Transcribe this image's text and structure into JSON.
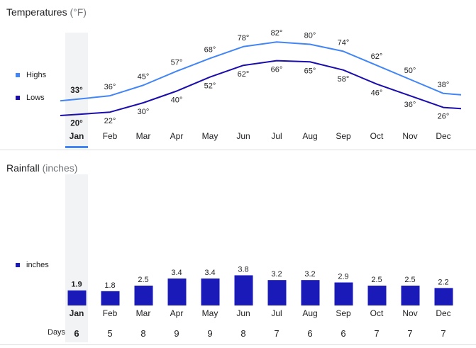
{
  "temperatures": {
    "title": "Temperatures",
    "unit": "(°F)",
    "legend": {
      "highs": "Highs",
      "lows": "Lows"
    }
  },
  "rainfall": {
    "title": "Rainfall",
    "unit": "(inches)",
    "legend": {
      "inches": "inches"
    }
  },
  "days_label": "Days",
  "selected_month": "Jan",
  "colors": {
    "highs": "#4285f4",
    "lows": "#1a0dab",
    "bars": "#1a1ab8",
    "selected_col": "#f1f3f4",
    "selected_underline": "#4285f4"
  },
  "chart_data": [
    {
      "type": "line",
      "title": "Temperatures (°F)",
      "categories": [
        "Jan",
        "Feb",
        "Mar",
        "Apr",
        "May",
        "Jun",
        "Jul",
        "Aug",
        "Sep",
        "Oct",
        "Nov",
        "Dec"
      ],
      "series": [
        {
          "name": "Highs",
          "values": [
            33,
            36,
            45,
            57,
            68,
            78,
            82,
            80,
            74,
            62,
            50,
            38
          ],
          "labels": [
            "33°",
            "36°",
            "45°",
            "57°",
            "68°",
            "78°",
            "82°",
            "80°",
            "74°",
            "62°",
            "50°",
            "38°"
          ]
        },
        {
          "name": "Lows",
          "values": [
            20,
            22,
            30,
            40,
            52,
            62,
            66,
            65,
            58,
            46,
            36,
            26
          ],
          "labels": [
            "20°",
            "22°",
            "30°",
            "40°",
            "52°",
            "62°",
            "66°",
            "65°",
            "58°",
            "46°",
            "36°",
            "26°"
          ]
        }
      ],
      "ylim": [
        10,
        90
      ]
    },
    {
      "type": "bar",
      "title": "Rainfall (inches)",
      "categories": [
        "Jan",
        "Feb",
        "Mar",
        "Apr",
        "May",
        "Jun",
        "Jul",
        "Aug",
        "Sep",
        "Oct",
        "Nov",
        "Dec"
      ],
      "values": [
        1.9,
        1.8,
        2.5,
        3.4,
        3.4,
        3.8,
        3.2,
        3.2,
        2.9,
        2.5,
        2.5,
        2.2
      ],
      "labels": [
        "1.9",
        "1.8",
        "2.5",
        "3.4",
        "3.4",
        "3.8",
        "3.2",
        "3.2",
        "2.9",
        "2.5",
        "2.5",
        "2.2"
      ],
      "days": [
        "6",
        "5",
        "8",
        "9",
        "9",
        "8",
        "7",
        "6",
        "6",
        "7",
        "7",
        "7"
      ],
      "ylim": [
        0,
        5.2
      ]
    }
  ]
}
